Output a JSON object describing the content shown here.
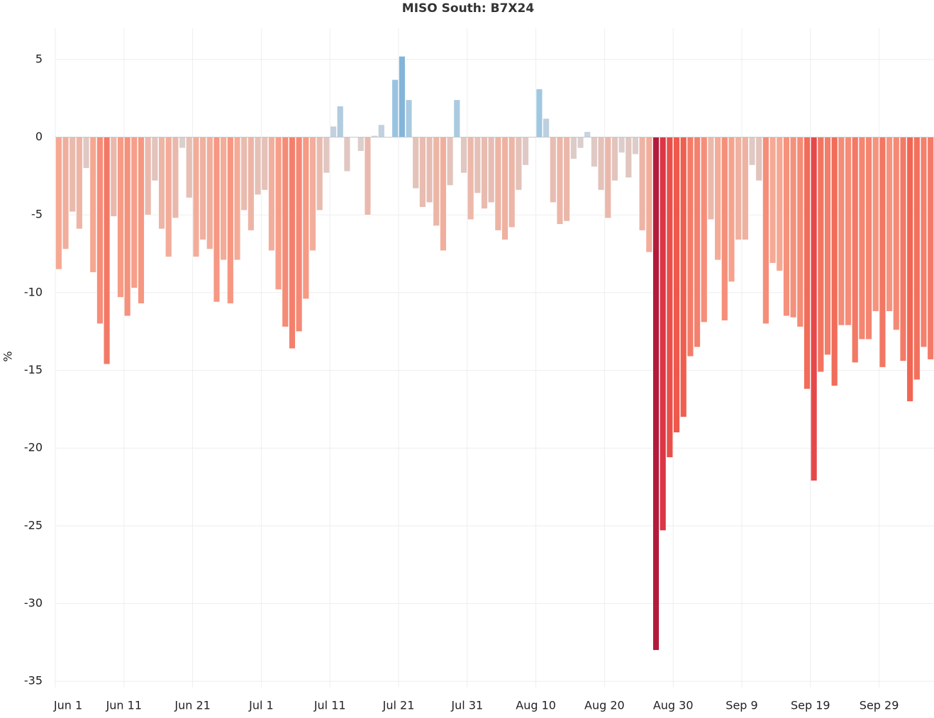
{
  "chart_data": {
    "type": "bar",
    "title": "MISO South: B7X24",
    "y_label": "%",
    "categories": [
      "Jun 1",
      null,
      null,
      null,
      null,
      null,
      null,
      null,
      null,
      null,
      "Jun 11",
      null,
      null,
      null,
      null,
      null,
      null,
      null,
      null,
      null,
      "Jun 21",
      null,
      null,
      null,
      null,
      null,
      null,
      null,
      null,
      null,
      "Jul 1",
      null,
      null,
      null,
      null,
      null,
      null,
      null,
      null,
      null,
      "Jul 11",
      null,
      null,
      null,
      null,
      null,
      null,
      null,
      null,
      null,
      "Jul 21",
      null,
      null,
      null,
      null,
      null,
      null,
      null,
      null,
      null,
      "Jul 31",
      null,
      null,
      null,
      null,
      null,
      null,
      null,
      null,
      null,
      "Aug 10",
      null,
      null,
      null,
      null,
      null,
      null,
      null,
      null,
      null,
      "Aug 20",
      null,
      null,
      null,
      null,
      null,
      null,
      null,
      null,
      null,
      "Aug 30",
      null,
      null,
      null,
      null,
      null,
      null,
      null,
      null,
      null,
      "Sep 9",
      null,
      null,
      null,
      null,
      null,
      null,
      null,
      null,
      null,
      "Sep 19",
      null,
      null,
      null,
      null,
      null,
      null,
      null,
      null,
      null,
      "Sep 29",
      null,
      null,
      null,
      null,
      null,
      null,
      null
    ],
    "values": [
      -8.5,
      -7.2,
      -4.8,
      -5.9,
      -2.0,
      -8.7,
      -12.0,
      -14.6,
      -5.1,
      -10.3,
      -11.5,
      -9.7,
      -10.7,
      -5.0,
      -2.8,
      -5.9,
      -7.7,
      -5.2,
      -0.7,
      -3.9,
      -7.7,
      -6.6,
      -7.2,
      -10.6,
      -7.9,
      -10.7,
      -7.9,
      -4.7,
      -6.0,
      -3.7,
      -3.4,
      -7.3,
      -9.8,
      -12.2,
      -13.6,
      -12.5,
      -10.4,
      -7.3,
      -4.7,
      -2.3,
      0.7,
      2.0,
      -2.2,
      0,
      -0.9,
      -5.0,
      0.1,
      0.8,
      0,
      3.7,
      5.2,
      2.4,
      -3.3,
      -4.5,
      -4.2,
      -5.7,
      -7.3,
      -3.1,
      2.4,
      -2.3,
      -5.3,
      -3.6,
      -4.6,
      -4.2,
      -6.0,
      -6.6,
      -5.8,
      -3.4,
      -1.8,
      0,
      3.1,
      1.2,
      -4.2,
      -5.6,
      -5.4,
      -1.4,
      -0.7,
      0.35,
      -1.9,
      -3.4,
      -5.2,
      -2.8,
      -1.0,
      -2.6,
      -1.1,
      -6.0,
      -7.4,
      -33.0,
      -25.3,
      -20.6,
      -19.0,
      -18.0,
      -14.1,
      -13.5,
      -11.9,
      -5.3,
      -7.9,
      -11.8,
      -9.3,
      -6.6,
      -6.6,
      -1.8,
      -2.8,
      -12.0,
      -8.1,
      -8.6,
      -11.5,
      -11.6,
      -12.2,
      -16.2,
      -22.1,
      -15.1,
      -14.0,
      -16.0,
      -12.1,
      -12.1,
      -14.5,
      -13.0,
      -13.0,
      -11.2,
      -14.8,
      -11.2,
      -12.4,
      -14.4,
      -17.0,
      -15.6,
      -13.5,
      -14.3
    ],
    "negative_colors": [
      "#d8d2d2",
      "#f7a690",
      "#f0604e",
      "#d92f43",
      "#a3133a"
    ],
    "positive_colors": [
      "#ccd4dc",
      "#9cc6e2",
      "#6aa3cf"
    ],
    "ylim": [
      -35.4,
      7
    ],
    "yticks": [
      5,
      0,
      -5,
      -10,
      -15,
      -20,
      -25,
      -30,
      -35
    ],
    "grid": true
  }
}
